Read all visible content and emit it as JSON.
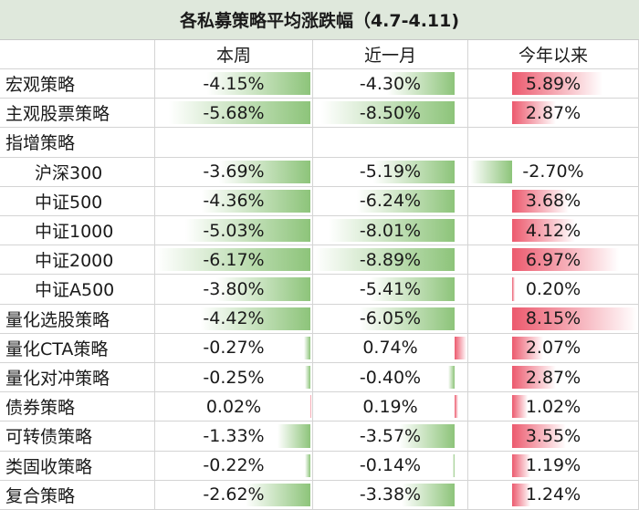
{
  "title": "各私募策略平均涨跌幅（4.7-4.11)",
  "table": {
    "header": [
      "本周",
      "近一月",
      "今年以来"
    ],
    "rows": [
      [
        "宏观策略",
        "-4.15%",
        "-4.30%",
        "5.89%"
      ],
      [
        "主观股票策略",
        "-5.68%",
        "-8.50%",
        "2.87%"
      ],
      [
        "指增策略",
        null,
        null,
        null
      ],
      [
        "沪深300",
        "-3.69%",
        "-5.19%",
        "-2.70%"
      ],
      [
        "中证500",
        "-4.36%",
        "-6.24%",
        "3.68%"
      ],
      [
        "中证1000",
        "-5.03%",
        "-8.01%",
        "4.12%"
      ],
      [
        "中证2000",
        "-6.17%",
        "-8.89%",
        "6.97%"
      ],
      [
        "中证A500",
        "-3.80%",
        "-5.41%",
        "0.20%"
      ],
      [
        "量化选股策略",
        "-4.42%",
        "-6.05%",
        "8.15%"
      ],
      [
        "量化CTA策略",
        "-0.27%",
        "0.74%",
        "2.07%"
      ],
      [
        "量化对冲策略",
        "-0.25%",
        "-0.40%",
        "2.87%"
      ],
      [
        "债券策略",
        "0.02%",
        "0.19%",
        "1.02%"
      ],
      [
        "可转债策略",
        "-1.33%",
        "-3.57%",
        "3.55%"
      ],
      [
        "类固收策略",
        "-0.22%",
        "-0.14%",
        "1.19%"
      ],
      [
        "复合策略",
        "-2.62%",
        "-3.38%",
        "1.24%"
      ]
    ]
  }
}
